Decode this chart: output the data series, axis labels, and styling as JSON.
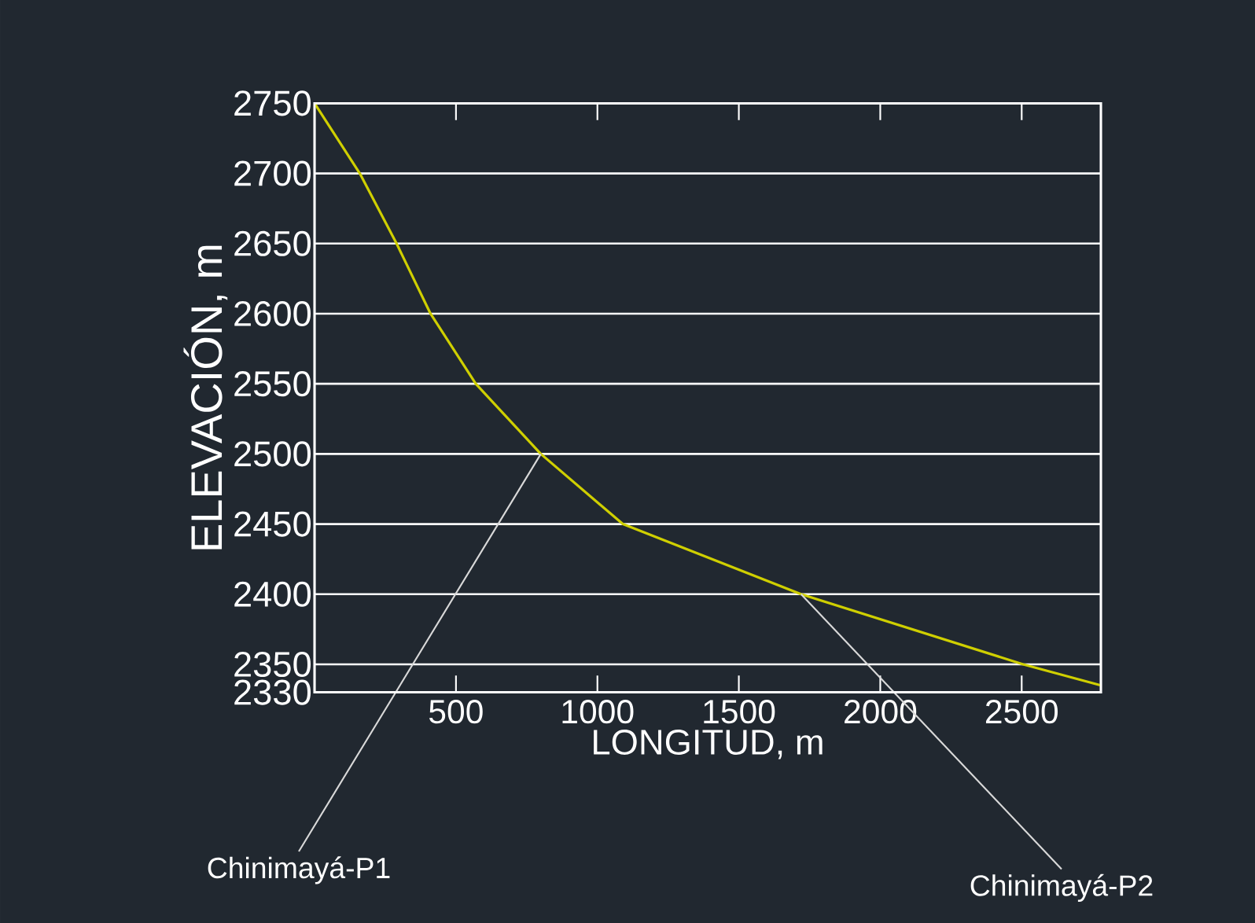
{
  "chart_data": {
    "type": "line",
    "xlabel": "LONGITUD, m",
    "ylabel": "ELEVACIÓN, m",
    "x": [
      0,
      160,
      290,
      410,
      570,
      800,
      1090,
      1720,
      2505,
      2780
    ],
    "series": [
      {
        "color": "#cfcf00",
        "values": [
          2750,
          2700,
          2650,
          2600,
          2550,
          2500,
          2450,
          2400,
          2350,
          2335
        ]
      }
    ],
    "xlim": [
      0,
      2780
    ],
    "ylim": [
      2330,
      2750
    ],
    "xticks": [
      500,
      1000,
      1500,
      2000,
      2500
    ],
    "yticks": [
      2330,
      2350,
      2400,
      2450,
      2500,
      2550,
      2600,
      2650,
      2700,
      2750
    ],
    "grid": "y",
    "marker": "none",
    "line_style": "solid",
    "annotations": [
      {
        "text": "Chinimayá-P1",
        "x": 800,
        "y": 2500
      },
      {
        "text": "Chinimayá-P2",
        "x": 1720,
        "y": 2400
      }
    ]
  }
}
